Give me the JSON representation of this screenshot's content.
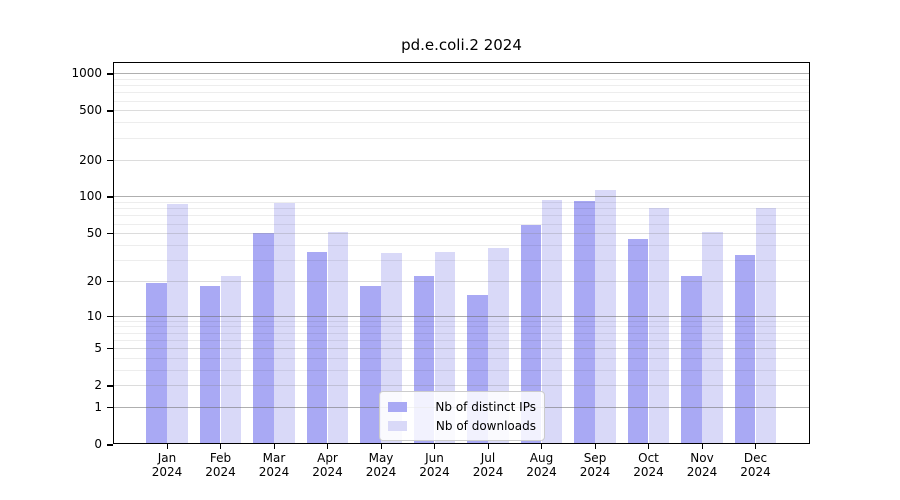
{
  "chart_data": {
    "type": "bar",
    "title": "pd.e.coli.2 2024",
    "y_scale": "log1p",
    "categories": [
      "Jan",
      "Feb",
      "Mar",
      "Apr",
      "May",
      "Jun",
      "Jul",
      "Aug",
      "Sep",
      "Oct",
      "Nov",
      "Dec"
    ],
    "category_year": "2024",
    "series": [
      {
        "name": "Nb of distinct IPs",
        "color": "#a9a9f4",
        "values": [
          19,
          18,
          50,
          35,
          18,
          22,
          15,
          58,
          91,
          45,
          22,
          33
        ]
      },
      {
        "name": "Nb of downloads",
        "color": "#d9d9f8",
        "values": [
          87,
          22,
          88,
          51,
          34,
          35,
          38,
          94,
          113,
          80,
          51,
          80
        ]
      }
    ],
    "y_ticks": [
      0,
      1,
      2,
      5,
      10,
      20,
      50,
      100,
      200,
      500,
      1000
    ],
    "y_minor_ticks": [
      3,
      4,
      6,
      7,
      8,
      9,
      30,
      40,
      60,
      70,
      80,
      90,
      300,
      400,
      600,
      700,
      800,
      900
    ],
    "ylim": [
      0,
      1230
    ],
    "grid": true,
    "legend_position": "bottom-center",
    "colors": {
      "distinct_ips_bar": "#a9a9f4",
      "downloads_bar": "#d9d9f8",
      "grid_major": "#9e9e9e",
      "grid_minor": "#ececec",
      "axis": "#000000",
      "background": "#ffffff"
    }
  }
}
